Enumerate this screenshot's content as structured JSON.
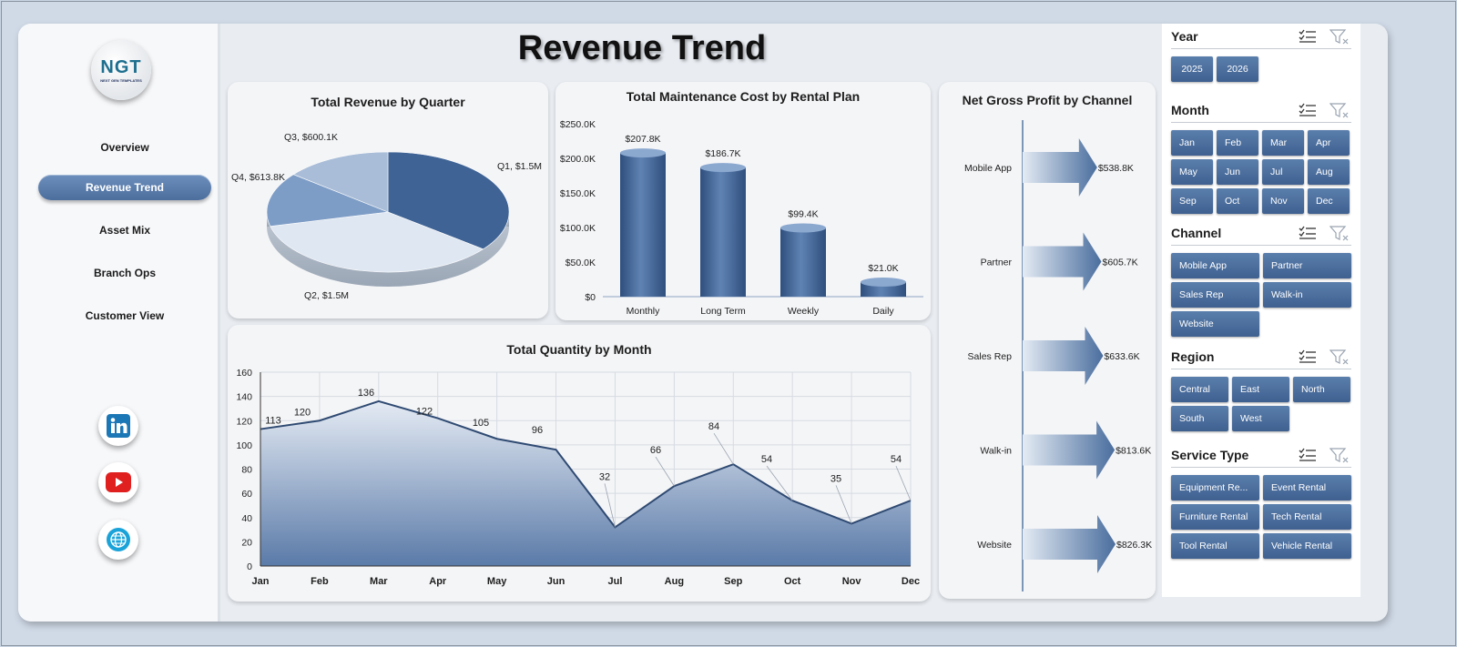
{
  "title": "Revenue Trend",
  "logo": {
    "mark": "NGT",
    "sub": "NEXT GEN TEMPLATES"
  },
  "nav": [
    "Overview",
    "Revenue Trend",
    "Asset Mix",
    "Branch Ops",
    "Customer View"
  ],
  "nav_active": "Revenue Trend",
  "social": [
    "linkedin-icon",
    "youtube-icon",
    "globe-icon"
  ],
  "charts": [
    {
      "id": "revenue-by-quarter",
      "type": "pie",
      "title": "Total Revenue by Quarter",
      "slices": [
        {
          "label": "Q1",
          "value": 1.5,
          "display": "Q1, $1.5M",
          "color": "#3f6395"
        },
        {
          "label": "Q2",
          "value": 1.5,
          "display": "Q2, $1.5M",
          "color": "#dfe7f2"
        },
        {
          "label": "Q4",
          "value": 0.6138,
          "display": "Q4, $613.8K",
          "color": "#7e9dc6"
        },
        {
          "label": "Q3",
          "value": 0.6001,
          "display": "Q3, $600.1K",
          "color": "#a9bdd8"
        }
      ]
    },
    {
      "id": "maintenance-by-plan",
      "type": "bar",
      "title": "Total Maintenance Cost by Rental Plan",
      "categories": [
        "Monthly",
        "Long Term",
        "Weekly",
        "Daily"
      ],
      "values": [
        207.8,
        186.7,
        99.4,
        21.0
      ],
      "value_labels": [
        "$207.8K",
        "$186.7K",
        "$99.4K",
        "$21.0K"
      ],
      "ylim": [
        0,
        250
      ],
      "yticks": [
        "$0",
        "$50.0K",
        "$100.0K",
        "$150.0K",
        "$200.0K",
        "$250.0K"
      ],
      "color": "#4a6e9e"
    },
    {
      "id": "quantity-by-month",
      "type": "area",
      "title": "Total Quantity by Month",
      "categories": [
        "Jan",
        "Feb",
        "Mar",
        "Apr",
        "May",
        "Jun",
        "Jul",
        "Aug",
        "Sep",
        "Oct",
        "Nov",
        "Dec"
      ],
      "values": [
        113,
        120,
        136,
        122,
        105,
        96,
        32,
        66,
        84,
        54,
        35,
        54
      ],
      "ylim": [
        0,
        160
      ],
      "yticks": [
        "0",
        "20",
        "40",
        "60",
        "80",
        "100",
        "120",
        "140",
        "160"
      ],
      "grid": true,
      "color": "#2f4a72"
    },
    {
      "id": "net-gross-profit-by-channel",
      "type": "bar",
      "orientation": "horizontal",
      "title": "Net Gross Profit by Channel",
      "categories": [
        "Mobile App",
        "Partner",
        "Sales Rep",
        "Walk-in",
        "Website"
      ],
      "values": [
        538.8,
        605.7,
        633.6,
        813.6,
        826.3
      ],
      "value_labels": [
        "$538.8K",
        "$605.7K",
        "$633.6K",
        "$813.6K",
        "$826.3K"
      ],
      "color": "#4a6e9e"
    }
  ],
  "chart_data": [
    {
      "type": "pie",
      "title": "Total Revenue by Quarter",
      "categories": [
        "Q1",
        "Q2",
        "Q4",
        "Q3"
      ],
      "values": [
        1500,
        1500,
        613.8,
        600.1
      ]
    },
    {
      "type": "bar",
      "title": "Total Maintenance Cost by Rental Plan",
      "categories": [
        "Monthly",
        "Long Term",
        "Weekly",
        "Daily"
      ],
      "values": [
        207.8,
        186.7,
        99.4,
        21.0
      ],
      "ylim": [
        0,
        250
      ]
    },
    {
      "type": "area",
      "title": "Total Quantity by Month",
      "categories": [
        "Jan",
        "Feb",
        "Mar",
        "Apr",
        "May",
        "Jun",
        "Jul",
        "Aug",
        "Sep",
        "Oct",
        "Nov",
        "Dec"
      ],
      "values": [
        113,
        120,
        136,
        122,
        105,
        96,
        32,
        66,
        84,
        54,
        35,
        54
      ],
      "ylim": [
        0,
        160
      ],
      "grid": true
    },
    {
      "type": "bar",
      "title": "Net Gross Profit by Channel",
      "categories": [
        "Mobile App",
        "Partner",
        "Sales Rep",
        "Walk-in",
        "Website"
      ],
      "values": [
        538.8,
        605.7,
        633.6,
        813.6,
        826.3
      ]
    }
  ],
  "slicers": {
    "year": {
      "label": "Year",
      "items": [
        "2025",
        "2026"
      ]
    },
    "month": {
      "label": "Month",
      "items": [
        "Jan",
        "Feb",
        "Mar",
        "Apr",
        "May",
        "Jun",
        "Jul",
        "Aug",
        "Sep",
        "Oct",
        "Nov",
        "Dec"
      ]
    },
    "channel": {
      "label": "Channel",
      "items": [
        "Mobile App",
        "Partner",
        "Sales Rep",
        "Walk-in",
        "Website"
      ]
    },
    "region": {
      "label": "Region",
      "items": [
        "Central",
        "East",
        "North",
        "South",
        "West"
      ]
    },
    "service_type": {
      "label": "Service Type",
      "items": [
        "Equipment Re...",
        "Event Rental",
        "Furniture Rental",
        "Tech Rental",
        "Tool Rental",
        "Vehicle Rental"
      ]
    }
  },
  "icons": {
    "multiselect": "multiselect-icon",
    "clear_filter": "clear-filter-icon"
  },
  "colors": {
    "accent": "#4a6e9e",
    "chip": "#4d6f9f",
    "panel": "#f4f5f7"
  }
}
